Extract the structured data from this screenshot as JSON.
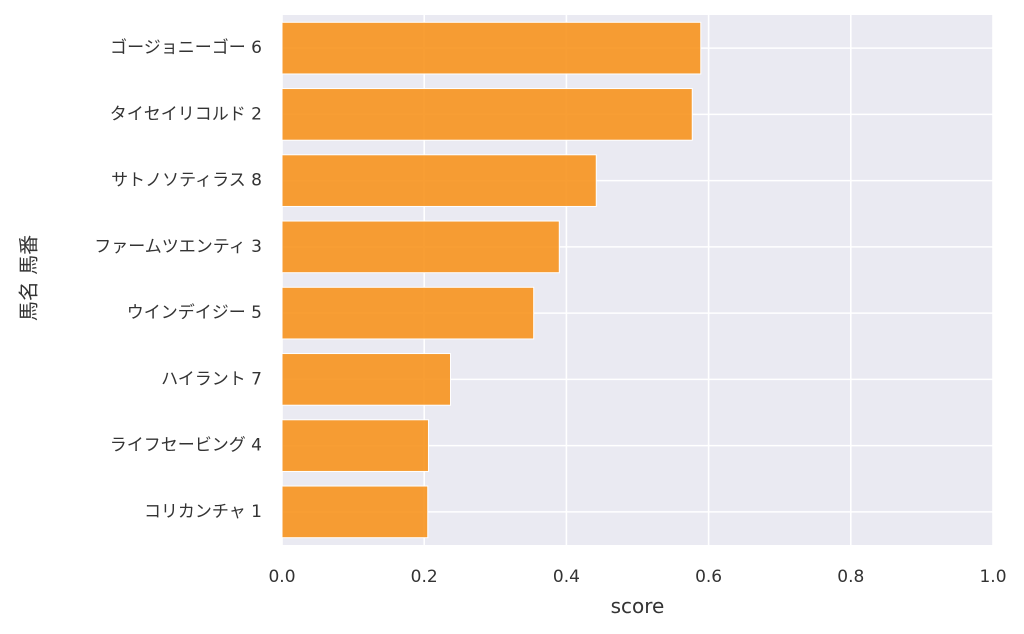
{
  "chart_data": {
    "type": "bar",
    "orientation": "horizontal",
    "categories": [
      "ゴージョニーゴー 6",
      "タイセイリコルド 2",
      "サトノソティラス 8",
      "ファームツエンティ 3",
      "ウインデイジー 5",
      "ハイラント 7",
      "ライフセービング 4",
      "コリカンチャ 1"
    ],
    "values": [
      0.589,
      0.577,
      0.442,
      0.39,
      0.354,
      0.237,
      0.206,
      0.205
    ],
    "xlabel": "score",
    "ylabel": "馬名 馬番",
    "xlim": [
      0.0,
      1.0
    ],
    "xticks": [
      "0.0",
      "0.2",
      "0.4",
      "0.6",
      "0.8",
      "1.0"
    ],
    "grid": true,
    "bar_color": "#f7931e",
    "background_color": "#eaeaf2",
    "grid_color": "#ffffff"
  }
}
